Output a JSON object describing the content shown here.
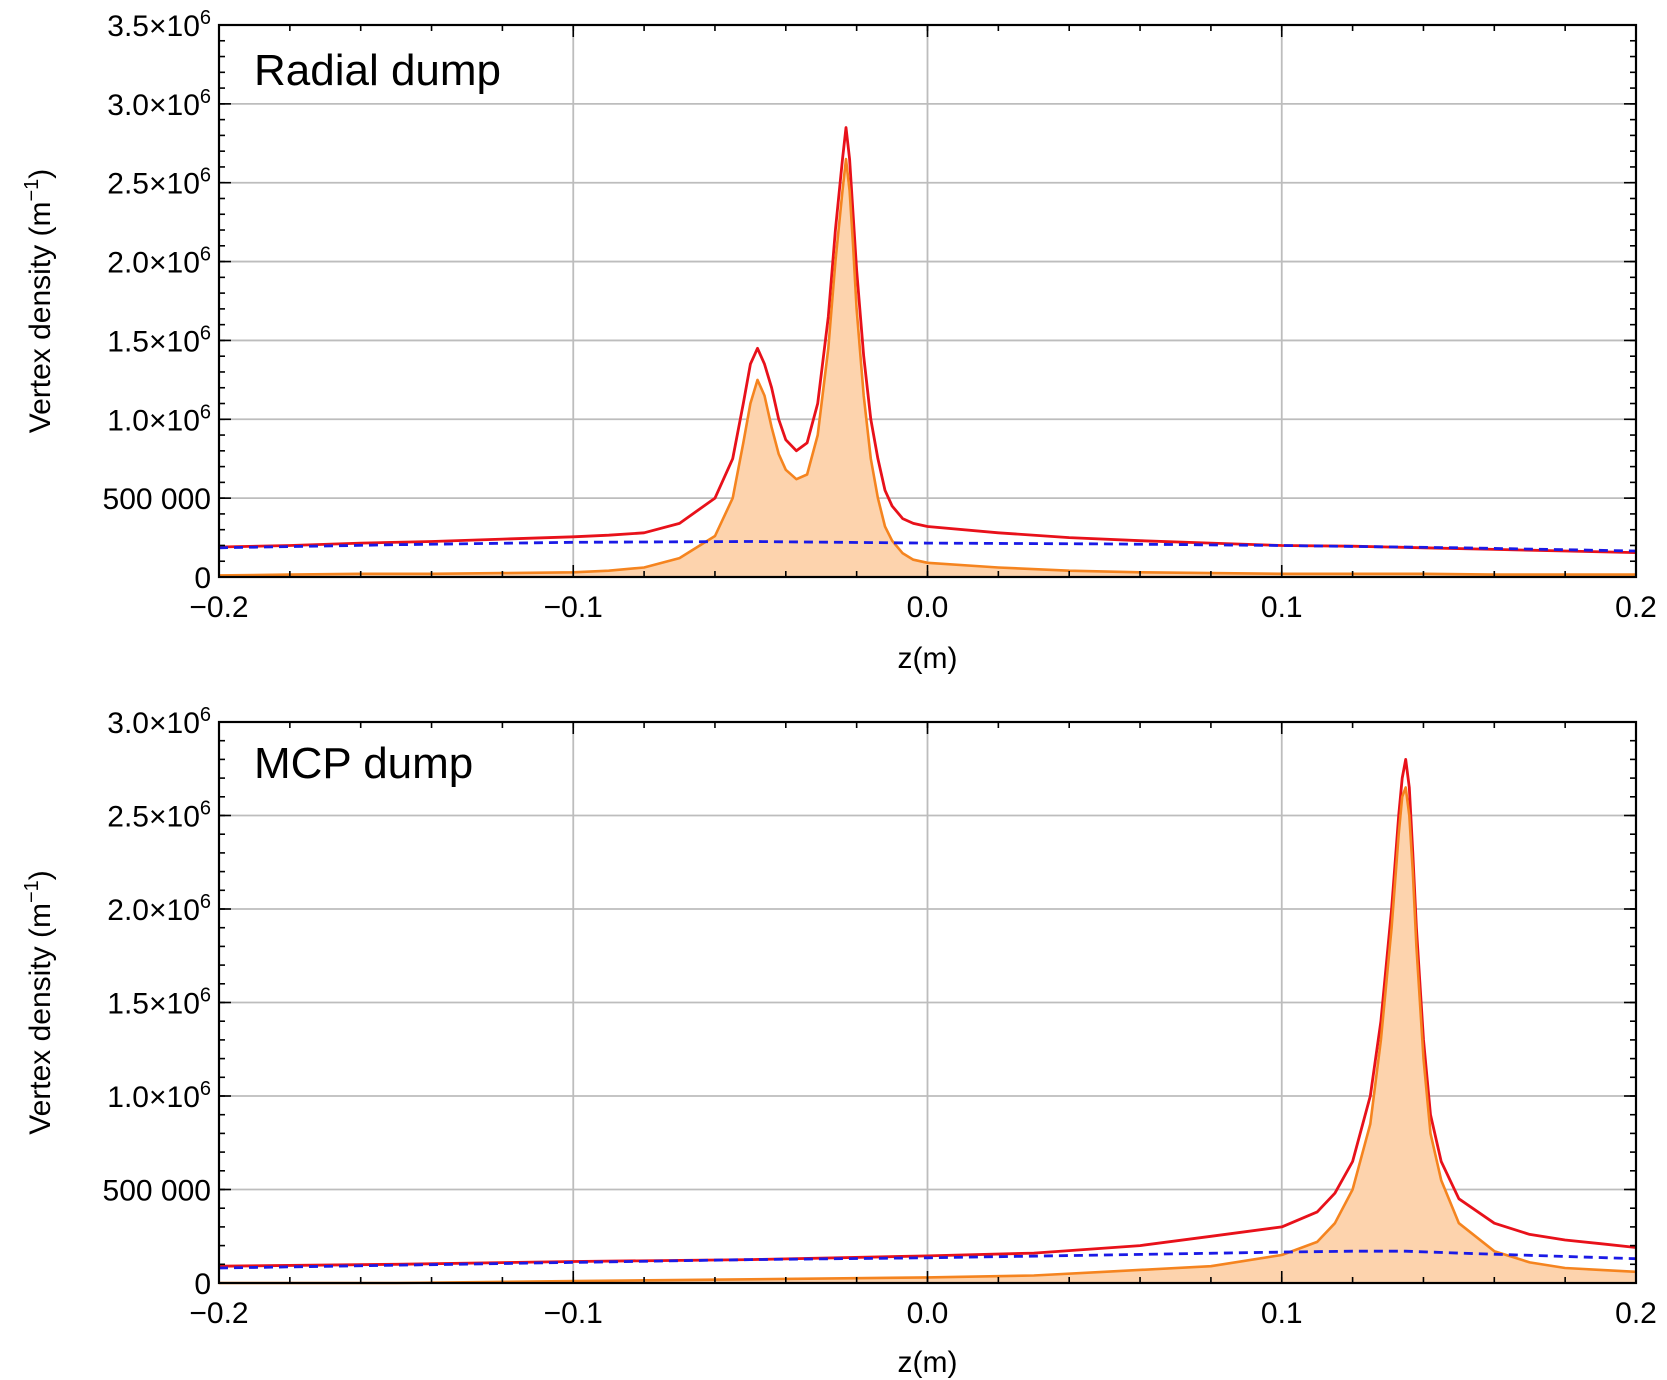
{
  "chart_data": [
    {
      "type": "line",
      "title": "Radial dump",
      "xlabel": "z(m)",
      "ylabel": "Vertex density (m",
      "ylabel_sup": "−1",
      "ylabel_close": ")",
      "xlim": [
        -0.2,
        0.2
      ],
      "ylim": [
        0,
        3500000
      ],
      "grid": true,
      "x_ticks": [
        -0.2,
        -0.1,
        0.0,
        0.1,
        0.2
      ],
      "x_tick_labels": [
        "−0.2",
        "−0.1",
        "0.0",
        "0.1",
        "0.2"
      ],
      "y_ticks": [
        {
          "value": 0,
          "label": "0"
        },
        {
          "value": 500000,
          "label": "500 000"
        },
        {
          "value": 1000000,
          "label": "1.0×10",
          "exp": "6"
        },
        {
          "value": 1500000,
          "label": "1.5×10",
          "exp": "6"
        },
        {
          "value": 2000000,
          "label": "2.0×10",
          "exp": "6"
        },
        {
          "value": 2500000,
          "label": "2.5×10",
          "exp": "6"
        },
        {
          "value": 3000000,
          "label": "3.0×10",
          "exp": "6"
        },
        {
          "value": 3500000,
          "label": "3.5×10",
          "exp": "6"
        }
      ],
      "series": [
        {
          "style": "solid",
          "color": "#e8111a",
          "x": [
            -0.2,
            -0.18,
            -0.16,
            -0.14,
            -0.12,
            -0.1,
            -0.09,
            -0.08,
            -0.07,
            -0.06,
            -0.055,
            -0.052,
            -0.05,
            -0.048,
            -0.046,
            -0.044,
            -0.042,
            -0.04,
            -0.037,
            -0.034,
            -0.031,
            -0.028,
            -0.026,
            -0.024,
            -0.023,
            -0.022,
            -0.021,
            -0.02,
            -0.018,
            -0.016,
            -0.014,
            -0.012,
            -0.01,
            -0.007,
            -0.004,
            0.0,
            0.02,
            0.04,
            0.06,
            0.08,
            0.1,
            0.12,
            0.14,
            0.16,
            0.18,
            0.2
          ],
          "y": [
            190000,
            200000,
            215000,
            225000,
            240000,
            255000,
            265000,
            280000,
            340000,
            500000,
            750000,
            1100000,
            1350000,
            1450000,
            1350000,
            1200000,
            1000000,
            870000,
            800000,
            850000,
            1100000,
            1650000,
            2200000,
            2650000,
            2850000,
            2650000,
            2300000,
            1950000,
            1400000,
            1000000,
            750000,
            550000,
            450000,
            370000,
            340000,
            320000,
            280000,
            250000,
            230000,
            215000,
            200000,
            195000,
            185000,
            175000,
            165000,
            155000
          ]
        },
        {
          "style": "fill",
          "color": "#f5841f",
          "fill_color": "#fdd3ad",
          "x": [
            -0.2,
            -0.18,
            -0.16,
            -0.14,
            -0.12,
            -0.1,
            -0.09,
            -0.08,
            -0.07,
            -0.06,
            -0.055,
            -0.052,
            -0.05,
            -0.048,
            -0.046,
            -0.044,
            -0.042,
            -0.04,
            -0.037,
            -0.034,
            -0.031,
            -0.028,
            -0.026,
            -0.024,
            -0.023,
            -0.022,
            -0.021,
            -0.02,
            -0.018,
            -0.016,
            -0.014,
            -0.012,
            -0.01,
            -0.007,
            -0.004,
            0.0,
            0.02,
            0.04,
            0.06,
            0.08,
            0.1,
            0.12,
            0.14,
            0.16,
            0.18,
            0.2
          ],
          "y": [
            10000,
            15000,
            20000,
            20000,
            25000,
            30000,
            40000,
            60000,
            120000,
            260000,
            500000,
            850000,
            1100000,
            1250000,
            1150000,
            950000,
            780000,
            680000,
            620000,
            650000,
            900000,
            1450000,
            2000000,
            2450000,
            2650000,
            2450000,
            2100000,
            1700000,
            1150000,
            750000,
            500000,
            320000,
            230000,
            150000,
            110000,
            90000,
            60000,
            40000,
            30000,
            25000,
            20000,
            20000,
            20000,
            15000,
            15000,
            15000
          ]
        },
        {
          "style": "dashed",
          "color": "#1a1ae6",
          "x": [
            -0.2,
            -0.15,
            -0.1,
            -0.05,
            0.0,
            0.05,
            0.1,
            0.15,
            0.2
          ],
          "y": [
            185000,
            205000,
            220000,
            225000,
            215000,
            210000,
            200000,
            185000,
            165000
          ]
        }
      ]
    },
    {
      "type": "line",
      "title": "MCP dump",
      "xlabel": "z(m)",
      "ylabel": "Vertex density (m",
      "ylabel_sup": "−1",
      "ylabel_close": ")",
      "xlim": [
        -0.2,
        0.2
      ],
      "ylim": [
        0,
        3000000
      ],
      "grid": true,
      "x_ticks": [
        -0.2,
        -0.1,
        0.0,
        0.1,
        0.2
      ],
      "x_tick_labels": [
        "−0.2",
        "−0.1",
        "0.0",
        "0.1",
        "0.2"
      ],
      "y_ticks": [
        {
          "value": 0,
          "label": "0"
        },
        {
          "value": 500000,
          "label": "500 000"
        },
        {
          "value": 1000000,
          "label": "1.0×10",
          "exp": "6"
        },
        {
          "value": 1500000,
          "label": "1.5×10",
          "exp": "6"
        },
        {
          "value": 2000000,
          "label": "2.0×10",
          "exp": "6"
        },
        {
          "value": 2500000,
          "label": "2.5×10",
          "exp": "6"
        },
        {
          "value": 3000000,
          "label": "3.0×10",
          "exp": "6"
        }
      ],
      "series": [
        {
          "style": "solid",
          "color": "#e8111a",
          "x": [
            -0.2,
            -0.15,
            -0.1,
            -0.05,
            0.0,
            0.03,
            0.06,
            0.08,
            0.1,
            0.11,
            0.115,
            0.12,
            0.125,
            0.128,
            0.131,
            0.133,
            0.134,
            0.135,
            0.136,
            0.137,
            0.138,
            0.14,
            0.142,
            0.145,
            0.15,
            0.16,
            0.17,
            0.18,
            0.19,
            0.2
          ],
          "y": [
            90000,
            100000,
            115000,
            125000,
            145000,
            160000,
            200000,
            250000,
            300000,
            380000,
            480000,
            650000,
            1000000,
            1400000,
            2000000,
            2500000,
            2700000,
            2800000,
            2650000,
            2300000,
            1900000,
            1300000,
            900000,
            650000,
            450000,
            320000,
            260000,
            230000,
            210000,
            190000
          ]
        },
        {
          "style": "fill",
          "color": "#f5841f",
          "fill_color": "#fdd3ad",
          "x": [
            -0.2,
            -0.15,
            -0.1,
            -0.05,
            0.0,
            0.03,
            0.05,
            0.08,
            0.1,
            0.11,
            0.115,
            0.12,
            0.125,
            0.128,
            0.131,
            0.133,
            0.134,
            0.135,
            0.136,
            0.137,
            0.138,
            0.14,
            0.142,
            0.145,
            0.15,
            0.16,
            0.17,
            0.18,
            0.19,
            0.2
          ],
          "y": [
            -10000,
            0,
            10000,
            20000,
            30000,
            40000,
            60000,
            90000,
            150000,
            220000,
            320000,
            500000,
            850000,
            1300000,
            1900000,
            2400000,
            2600000,
            2650000,
            2500000,
            2200000,
            1800000,
            1200000,
            800000,
            550000,
            320000,
            170000,
            110000,
            80000,
            70000,
            60000
          ]
        },
        {
          "style": "dashed",
          "color": "#1a1ae6",
          "x": [
            -0.2,
            -0.15,
            -0.1,
            -0.05,
            0.0,
            0.05,
            0.1,
            0.12,
            0.135,
            0.15,
            0.2
          ],
          "y": [
            80000,
            95000,
            110000,
            125000,
            135000,
            150000,
            165000,
            170000,
            170000,
            160000,
            130000
          ]
        }
      ]
    }
  ]
}
